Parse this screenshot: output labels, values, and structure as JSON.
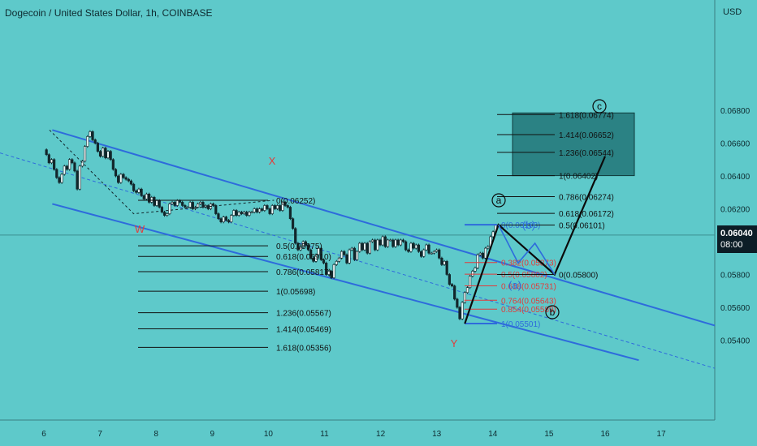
{
  "header": {
    "title": "Dogecoin / United States Dollar, 1h, COINBASE",
    "currency": "USD"
  },
  "last_price": {
    "price": "0.06040",
    "countdown": "08:00"
  },
  "colors": {
    "background": "#5ec9ca",
    "channel": "#2e6bdc",
    "fib_black": "#111111",
    "fib_red": "#e23b3b",
    "target_box": "#1b6a6c",
    "label_red": "#e23b3b"
  },
  "chart_data": {
    "type": "candlestick",
    "x_ticks": [
      "6",
      "7",
      "8",
      "9",
      "10",
      "11",
      "12",
      "13",
      "14",
      "15",
      "16",
      "17"
    ],
    "y_ticks": [
      "0.06800",
      "0.06600",
      "0.06400",
      "0.06200",
      "0.06000",
      "0.05800",
      "0.05600",
      "0.05400"
    ],
    "ylim": [
      0.0529,
      0.069
    ],
    "series_close": [
      0.0656,
      0.0653,
      0.0648,
      0.065,
      0.0644,
      0.0639,
      0.0636,
      0.0641,
      0.0646,
      0.0644,
      0.065,
      0.0648,
      0.0643,
      0.0632,
      0.0646,
      0.0649,
      0.0658,
      0.0664,
      0.0667,
      0.0662,
      0.066,
      0.0655,
      0.0652,
      0.0657,
      0.0651,
      0.0655,
      0.065,
      0.0644,
      0.064,
      0.0636,
      0.0641,
      0.0639,
      0.0638,
      0.0637,
      0.0635,
      0.0631,
      0.063,
      0.0632,
      0.0628,
      0.0626,
      0.0629,
      0.0624,
      0.0627,
      0.0622,
      0.0625,
      0.0621,
      0.0618,
      0.0616,
      0.0617,
      0.0623,
      0.0624,
      0.0622,
      0.0625,
      0.0624,
      0.0622,
      0.0621,
      0.0621,
      0.0624,
      0.062,
      0.0621,
      0.0623,
      0.0624,
      0.0621,
      0.0622,
      0.062,
      0.0623,
      0.0622,
      0.0617,
      0.0614,
      0.0612,
      0.0615,
      0.0613,
      0.0612,
      0.0616,
      0.0619,
      0.0616,
      0.0618,
      0.0617,
      0.0618,
      0.0616,
      0.0618,
      0.0618,
      0.062,
      0.0618,
      0.062,
      0.0619,
      0.0622,
      0.062,
      0.0617,
      0.0622,
      0.062,
      0.0622,
      0.0619,
      0.0624,
      0.0622,
      0.0621,
      0.0614,
      0.0608,
      0.0599,
      0.0595,
      0.0597,
      0.06,
      0.0598,
      0.0595,
      0.059,
      0.0588,
      0.0592,
      0.0596,
      0.0589,
      0.0587,
      0.058,
      0.0582,
      0.0578,
      0.0586,
      0.0588,
      0.059,
      0.0594,
      0.0592,
      0.0587,
      0.0595,
      0.0596,
      0.0589,
      0.0594,
      0.0599,
      0.0595,
      0.0599,
      0.0593,
      0.06,
      0.0601,
      0.0595,
      0.0601,
      0.0598,
      0.0603,
      0.0597,
      0.0601,
      0.0601,
      0.0597,
      0.0601,
      0.0598,
      0.0601,
      0.06,
      0.0595,
      0.0594,
      0.0599,
      0.0596,
      0.0598,
      0.0594,
      0.0591,
      0.0595,
      0.0598,
      0.0593,
      0.0593,
      0.0594,
      0.0595,
      0.059,
      0.0586,
      0.0588,
      0.058,
      0.0574,
      0.0573,
      0.0565,
      0.056,
      0.0553,
      0.0563,
      0.0569,
      0.0572,
      0.0579,
      0.0582,
      0.0584,
      0.0592,
      0.0593,
      0.059,
      0.0596,
      0.0597,
      0.0603,
      0.0606,
      0.061
    ],
    "fib_left": {
      "levels": [
        {
          "label": "0(0.06252)",
          "value": 0.06252
        },
        {
          "label": "0.5(0.05975)",
          "value": 0.05975
        },
        {
          "label": "0.618(0.05910)",
          "value": 0.0591
        },
        {
          "label": "0.786(0.05817)",
          "value": 0.05817
        },
        {
          "label": "1(0.05698)",
          "value": 0.05698
        },
        {
          "label": "1.236(0.05567)",
          "value": 0.05567
        },
        {
          "label": "1.414(0.05469)",
          "value": 0.05469
        },
        {
          "label": "1.618(0.05356)",
          "value": 0.05356
        }
      ]
    },
    "fib_retrace": {
      "levels": [
        {
          "label": "0(0.06103)",
          "value": 0.06103,
          "color": "blue"
        },
        {
          "label": "0.382(0.05873)",
          "value": 0.05873,
          "color": "red"
        },
        {
          "label": "0.5(0.05802)",
          "value": 0.05802,
          "color": "red"
        },
        {
          "label": "0.618(0.05731)",
          "value": 0.05731,
          "color": "red"
        },
        {
          "label": "0.764(0.05643)",
          "value": 0.05643,
          "color": "red"
        },
        {
          "label": "0.854(0.05589)",
          "value": 0.05589,
          "color": "red"
        },
        {
          "label": "1(0.05501)",
          "value": 0.05501,
          "color": "blue"
        }
      ]
    },
    "fib_extension": {
      "levels": [
        {
          "label": "1.618(0.06774)",
          "value": 0.06774
        },
        {
          "label": "1.414(0.06652)",
          "value": 0.06652
        },
        {
          "label": "1.236(0.06544)",
          "value": 0.06544
        },
        {
          "label": "1(0.06402)",
          "value": 0.06402
        },
        {
          "label": "0.786(0.06274)",
          "value": 0.06274
        },
        {
          "label": "0.618(0.06172)",
          "value": 0.06172
        },
        {
          "label": "0.5(0.06101)",
          "value": 0.06101
        },
        {
          "label": "0(0.05800)",
          "value": 0.058
        }
      ]
    },
    "wave_labels": [
      {
        "text": "X",
        "style": "red"
      },
      {
        "text": "W",
        "style": "red"
      },
      {
        "text": "Y",
        "style": "red"
      },
      {
        "text": "a",
        "style": "circle"
      },
      {
        "text": "b",
        "style": "circle"
      },
      {
        "text": "c",
        "style": "circle"
      },
      {
        "text": "(b)",
        "style": "blue"
      },
      {
        "text": "(a)",
        "style": "blue"
      }
    ]
  }
}
